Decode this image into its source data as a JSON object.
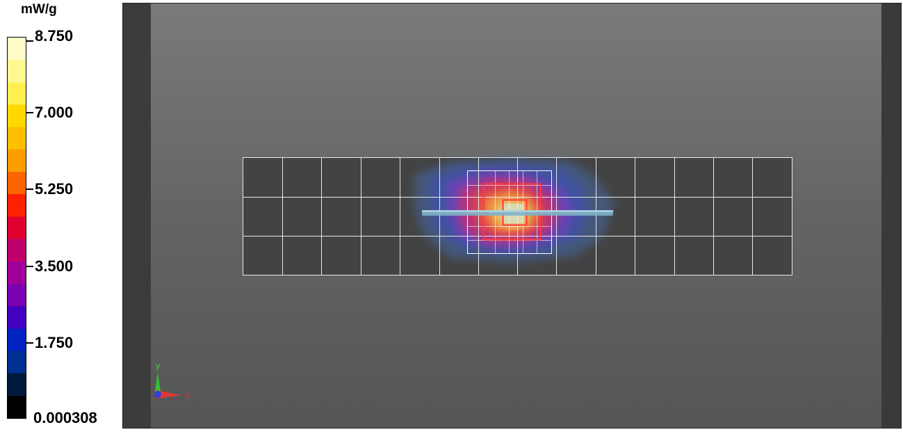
{
  "legend": {
    "unit": "mW/g",
    "labels": [
      "8.750",
      "7.000",
      "5.250",
      "3.500",
      "1.750",
      "0.000308"
    ],
    "color_bands": [
      "#000000",
      "#001a3c",
      "#003090",
      "#0022c0",
      "#4400c0",
      "#7a00b0",
      "#a0009a",
      "#c0006a",
      "#e00030",
      "#ff2000",
      "#ff6400",
      "#ff9c00",
      "#ffbe00",
      "#ffd800",
      "#fff050",
      "#fff890",
      "#fffcc8"
    ]
  },
  "axes": {
    "x_label": "x",
    "y_label": "y"
  }
}
